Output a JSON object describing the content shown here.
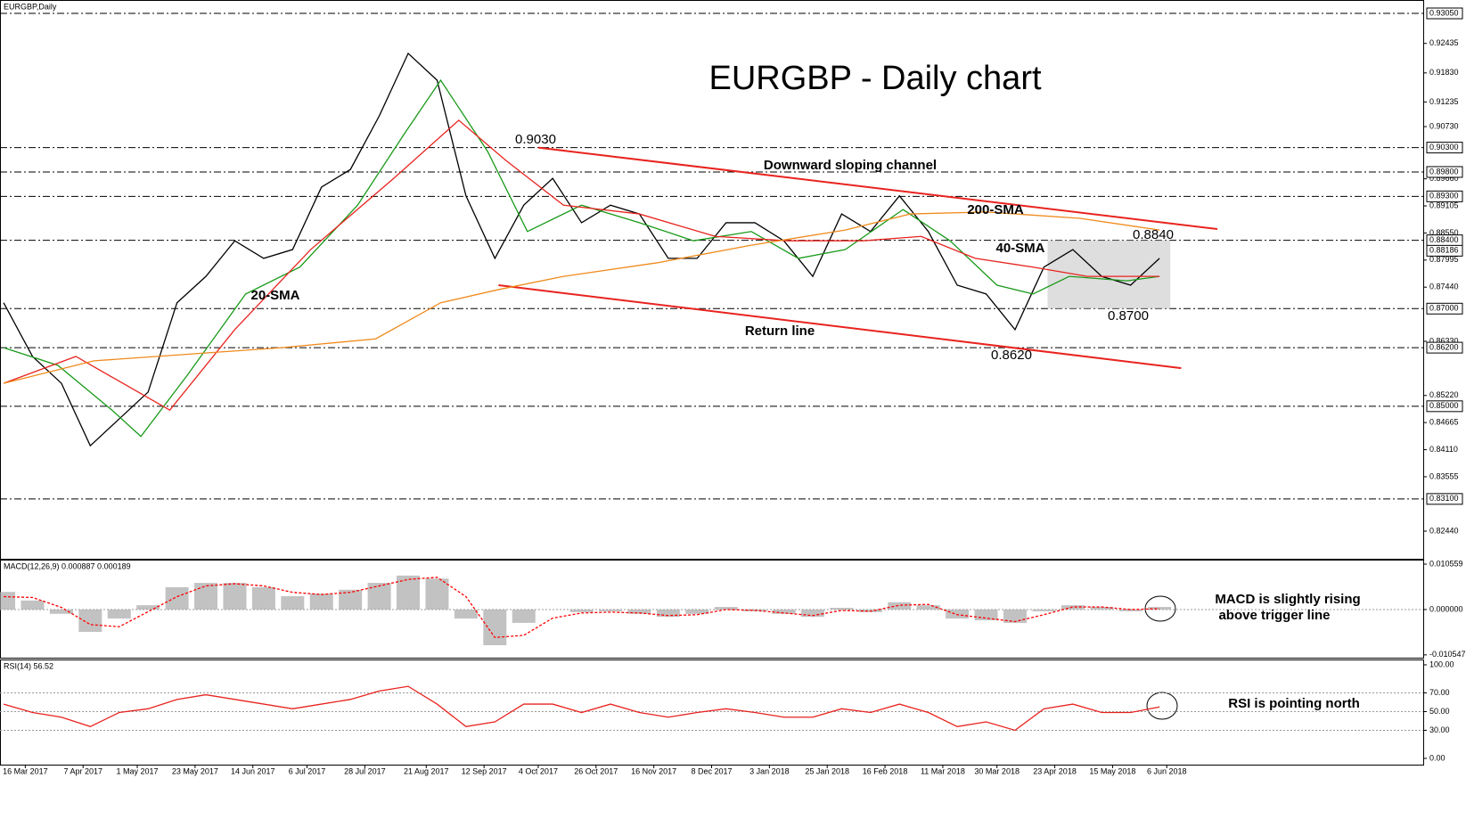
{
  "chart_data": [
    {
      "type": "line",
      "title": "EURGBP - Daily chart",
      "label": "EURGBP,Daily",
      "xlim": [
        -1,
        393
      ],
      "ylim": [
        0.81874,
        0.93324
      ],
      "yticks": [
        {
          "value": 0.92435,
          "label": "0.92435"
        },
        {
          "value": 0.9183,
          "label": "0.91830"
        },
        {
          "value": 0.91235,
          "label": "0.91235"
        },
        {
          "value": 0.9073,
          "label": "0.90730"
        },
        {
          "value": 0.8966,
          "label": "0.89660"
        },
        {
          "value": 0.89105,
          "label": "0.89105"
        },
        {
          "value": 0.8855,
          "label": "0.88550"
        },
        {
          "value": 0.87995,
          "label": "0.87995"
        },
        {
          "value": 0.8744,
          "label": "0.87440"
        },
        {
          "value": 0.8633,
          "label": "0.86330"
        },
        {
          "value": 0.8522,
          "label": "0.85220"
        },
        {
          "value": 0.84665,
          "label": "0.84665"
        },
        {
          "value": 0.8411,
          "label": "0.84110"
        },
        {
          "value": 0.83555,
          "label": "0.83555"
        },
        {
          "value": 0.8244,
          "label": "0.82440"
        }
      ],
      "levels": [
        {
          "value": 0.9305,
          "label": "0.93050"
        },
        {
          "value": 0.903,
          "label": "0.90300"
        },
        {
          "value": 0.898,
          "label": "0.89800"
        },
        {
          "value": 0.893,
          "label": "0.89300"
        },
        {
          "value": 0.884,
          "label": "0.88400"
        },
        {
          "value": 0.87,
          "label": "0.87000"
        },
        {
          "value": 0.862,
          "label": "0.86200"
        },
        {
          "value": 0.85,
          "label": "0.85000"
        },
        {
          "value": 0.831,
          "label": "0.83100"
        }
      ],
      "last_price": {
        "value": 0.88186,
        "label": "0.88186"
      },
      "series": [
        {
          "color": "#000000",
          "x": [
            0,
            8,
            16,
            24,
            32,
            40,
            48,
            56,
            64,
            72,
            80,
            88,
            96,
            104,
            112,
            120,
            128,
            136,
            144,
            152,
            160,
            168,
            176,
            184,
            192,
            200,
            208,
            216,
            224,
            232,
            240,
            248,
            256,
            264,
            272,
            280,
            288,
            296,
            304,
            312,
            320
          ],
          "values": [
            0.8712,
            0.8602,
            0.8547,
            0.8419,
            0.8474,
            0.8529,
            0.8712,
            0.8766,
            0.8839,
            0.8803,
            0.8821,
            0.8949,
            0.8985,
            0.9095,
            0.9223,
            0.9168,
            0.8931,
            0.8803,
            0.8912,
            0.8967,
            0.8876,
            0.8912,
            0.8894,
            0.8803,
            0.8803,
            0.8876,
            0.8876,
            0.8839,
            0.8766,
            0.8894,
            0.8858,
            0.8931,
            0.8858,
            0.8748,
            0.873,
            0.8657,
            0.8785,
            0.8821,
            0.8766,
            0.8748,
            0.8803
          ]
        },
        {
          "name": "20-SMA",
          "color": "#1a9a1a",
          "x": [
            0,
            15,
            30,
            38,
            51,
            67,
            82,
            98,
            111,
            121,
            134,
            145,
            160,
            176,
            191,
            207,
            220,
            233,
            249,
            262,
            275,
            285,
            295,
            311,
            320
          ],
          "values": [
            0.862,
            0.8584,
            0.8492,
            0.8438,
            0.8565,
            0.873,
            0.8785,
            0.8912,
            0.9059,
            0.9168,
            0.9022,
            0.8858,
            0.8912,
            0.8876,
            0.8839,
            0.8858,
            0.8803,
            0.8821,
            0.8903,
            0.8839,
            0.8748,
            0.873,
            0.8766,
            0.8757,
            0.8766
          ]
        },
        {
          "name": "40-SMA",
          "color": "#e8231e",
          "x": [
            0,
            20,
            46,
            64,
            85,
            108,
            126,
            139,
            155,
            176,
            197,
            217,
            238,
            254,
            269,
            285,
            300,
            320
          ],
          "values": [
            0.8547,
            0.8602,
            0.8492,
            0.8657,
            0.8821,
            0.8967,
            0.9086,
            0.9004,
            0.8912,
            0.8894,
            0.8848,
            0.8839,
            0.8839,
            0.8848,
            0.8803,
            0.8785,
            0.8766,
            0.8766
          ]
        },
        {
          "name": "200-SMA",
          "color": "#f08a1c",
          "x": [
            0,
            25,
            77,
            103,
            121,
            137,
            155,
            181,
            207,
            233,
            251,
            272,
            298,
            320
          ],
          "values": [
            0.8547,
            0.8593,
            0.862,
            0.8638,
            0.8712,
            0.8739,
            0.8766,
            0.8794,
            0.883,
            0.8861,
            0.8894,
            0.8898,
            0.8885,
            0.8861
          ]
        }
      ],
      "channel": [
        {
          "x": [
            148,
            336
          ],
          "values": [
            0.903,
            0.8863
          ]
        },
        {
          "x": [
            137,
            326
          ],
          "values": [
            0.8748,
            0.8578
          ]
        }
      ],
      "channel_color": "#e8231e",
      "range_box": {
        "x": [
          289,
          323
        ],
        "values": [
          0.884,
          0.87
        ]
      },
      "annotations": [
        "0.9030",
        "Downward sloping channel",
        "0.8840",
        "0.8700",
        "Return line",
        "0.8620"
      ]
    },
    {
      "type": "bar",
      "label": "MACD(12,26,9) 0.000887 0.000189",
      "xlim": [
        -1,
        393
      ],
      "ylim": [
        -0.0112,
        0.0116
      ],
      "yticks": [
        0.010559,
        {
          "value": 0,
          "label": "0.000000"
        },
        -0.010547
      ],
      "series": [
        {
          "color": "#a8a8a8",
          "x": [
            0,
            8,
            16,
            24,
            32,
            40,
            48,
            56,
            64,
            72,
            80,
            88,
            96,
            104,
            112,
            120,
            128,
            136,
            144,
            152,
            160,
            168,
            176,
            184,
            192,
            200,
            208,
            216,
            224,
            232,
            240,
            248,
            256,
            264,
            272,
            280,
            288,
            296,
            304,
            312,
            320
          ],
          "values": [
            0.0041,
            0.0021,
            -0.001,
            -0.0052,
            -0.0021,
            0.001,
            0.0052,
            0.0062,
            0.0062,
            0.0052,
            0.0031,
            0.0037,
            0.0046,
            0.0062,
            0.0079,
            0.0072,
            -0.0021,
            -0.0083,
            -0.0031,
            0,
            -0.0006,
            -0.0004,
            -0.001,
            -0.0017,
            -0.001,
            0.0006,
            -0.0004,
            -0.001,
            -0.0017,
            0.0004,
            -0.0006,
            0.0017,
            0.001,
            -0.0021,
            -0.0025,
            -0.0031,
            -0.0004,
            0.001,
            0.0006,
            -0.0004,
            0.0006
          ]
        },
        {
          "type": "line",
          "dash": true,
          "color": "#ff0000",
          "x": [
            0,
            8,
            16,
            24,
            32,
            40,
            48,
            56,
            64,
            72,
            80,
            88,
            96,
            104,
            112,
            120,
            128,
            136,
            144,
            152,
            160,
            168,
            176,
            184,
            192,
            200,
            208,
            216,
            224,
            232,
            240,
            248,
            256,
            264,
            272,
            280,
            288,
            296,
            304,
            312,
            320
          ],
          "values": [
            0.003,
            0.0028,
            0.0005,
            -0.0035,
            -0.004,
            -0.0005,
            0.003,
            0.0055,
            0.006,
            0.0055,
            0.004,
            0.0035,
            0.004,
            0.0055,
            0.007,
            0.0075,
            0.003,
            -0.0065,
            -0.006,
            -0.002,
            -0.0008,
            -0.0006,
            -0.0008,
            -0.0014,
            -0.0012,
            0,
            -0.0002,
            -0.0008,
            -0.0014,
            -0.0002,
            -0.0004,
            0.001,
            0.0012,
            -0.0012,
            -0.002,
            -0.0028,
            -0.0012,
            0.0006,
            0.0006,
            0,
            0.0002
          ]
        }
      ],
      "annotations": [
        "MACD is slightly rising",
        "above trigger line"
      ]
    },
    {
      "type": "line",
      "label": "RSI(14) 56.52",
      "xlim": [
        -1,
        393
      ],
      "ylim": [
        -6.7,
        105.7
      ],
      "yticks": [
        {
          "value": 100,
          "label": "100.00"
        },
        {
          "value": 70,
          "label": "70.00"
        },
        {
          "value": 50,
          "label": "50.00"
        },
        {
          "value": 30,
          "label": "30.00"
        },
        {
          "value": 0,
          "label": "0.00"
        }
      ],
      "levels": [
        70,
        50,
        30
      ],
      "series": [
        {
          "color": "#e8231e",
          "x": [
            0,
            8,
            16,
            24,
            32,
            40,
            48,
            56,
            64,
            72,
            80,
            88,
            96,
            104,
            112,
            120,
            128,
            136,
            144,
            152,
            160,
            168,
            176,
            184,
            192,
            200,
            208,
            216,
            224,
            232,
            240,
            248,
            256,
            264,
            272,
            280,
            288,
            296,
            304,
            312,
            320
          ],
          "values": [
            58,
            49,
            44,
            34,
            49,
            53,
            63,
            68,
            63,
            58,
            53,
            58,
            63,
            72,
            77,
            58,
            34,
            39,
            58,
            58,
            49,
            58,
            49,
            44,
            49,
            53,
            49,
            44,
            44,
            53,
            49,
            58,
            49,
            34,
            39,
            30,
            53,
            58,
            49,
            49,
            55
          ]
        }
      ],
      "xticks": [
        {
          "value": 6,
          "label": "16 Mar 2017"
        },
        {
          "value": 22,
          "label": "7 Apr 2017"
        },
        {
          "value": 37,
          "label": "1 May 2017"
        },
        {
          "value": 53,
          "label": "23 May 2017"
        },
        {
          "value": 69,
          "label": "14 Jun 2017"
        },
        {
          "value": 84,
          "label": "6 Jul 2017"
        },
        {
          "value": 100,
          "label": "28 Jul 2017"
        },
        {
          "value": 117,
          "label": "21 Aug 2017"
        },
        {
          "value": 133,
          "label": "12 Sep 2017"
        },
        {
          "value": 148,
          "label": "4 Oct 2017"
        },
        {
          "value": 164,
          "label": "26 Oct 2017"
        },
        {
          "value": 180,
          "label": "16 Nov 2017"
        },
        {
          "value": 196,
          "label": "8 Dec 2017"
        },
        {
          "value": 212,
          "label": "3 Jan 2018"
        },
        {
          "value": 228,
          "label": "25 Jan 2018"
        },
        {
          "value": 244,
          "label": "16 Feb 2018"
        },
        {
          "value": 260,
          "label": "11 Mar 2018"
        },
        {
          "value": 275,
          "label": "30 Mar 2018"
        },
        {
          "value": 291,
          "label": "23 Apr 2018"
        },
        {
          "value": 307,
          "label": "15 May 2018"
        },
        {
          "value": 322,
          "label": "6 Jun 2018"
        }
      ],
      "annotations": [
        "RSI is pointing north"
      ]
    }
  ]
}
